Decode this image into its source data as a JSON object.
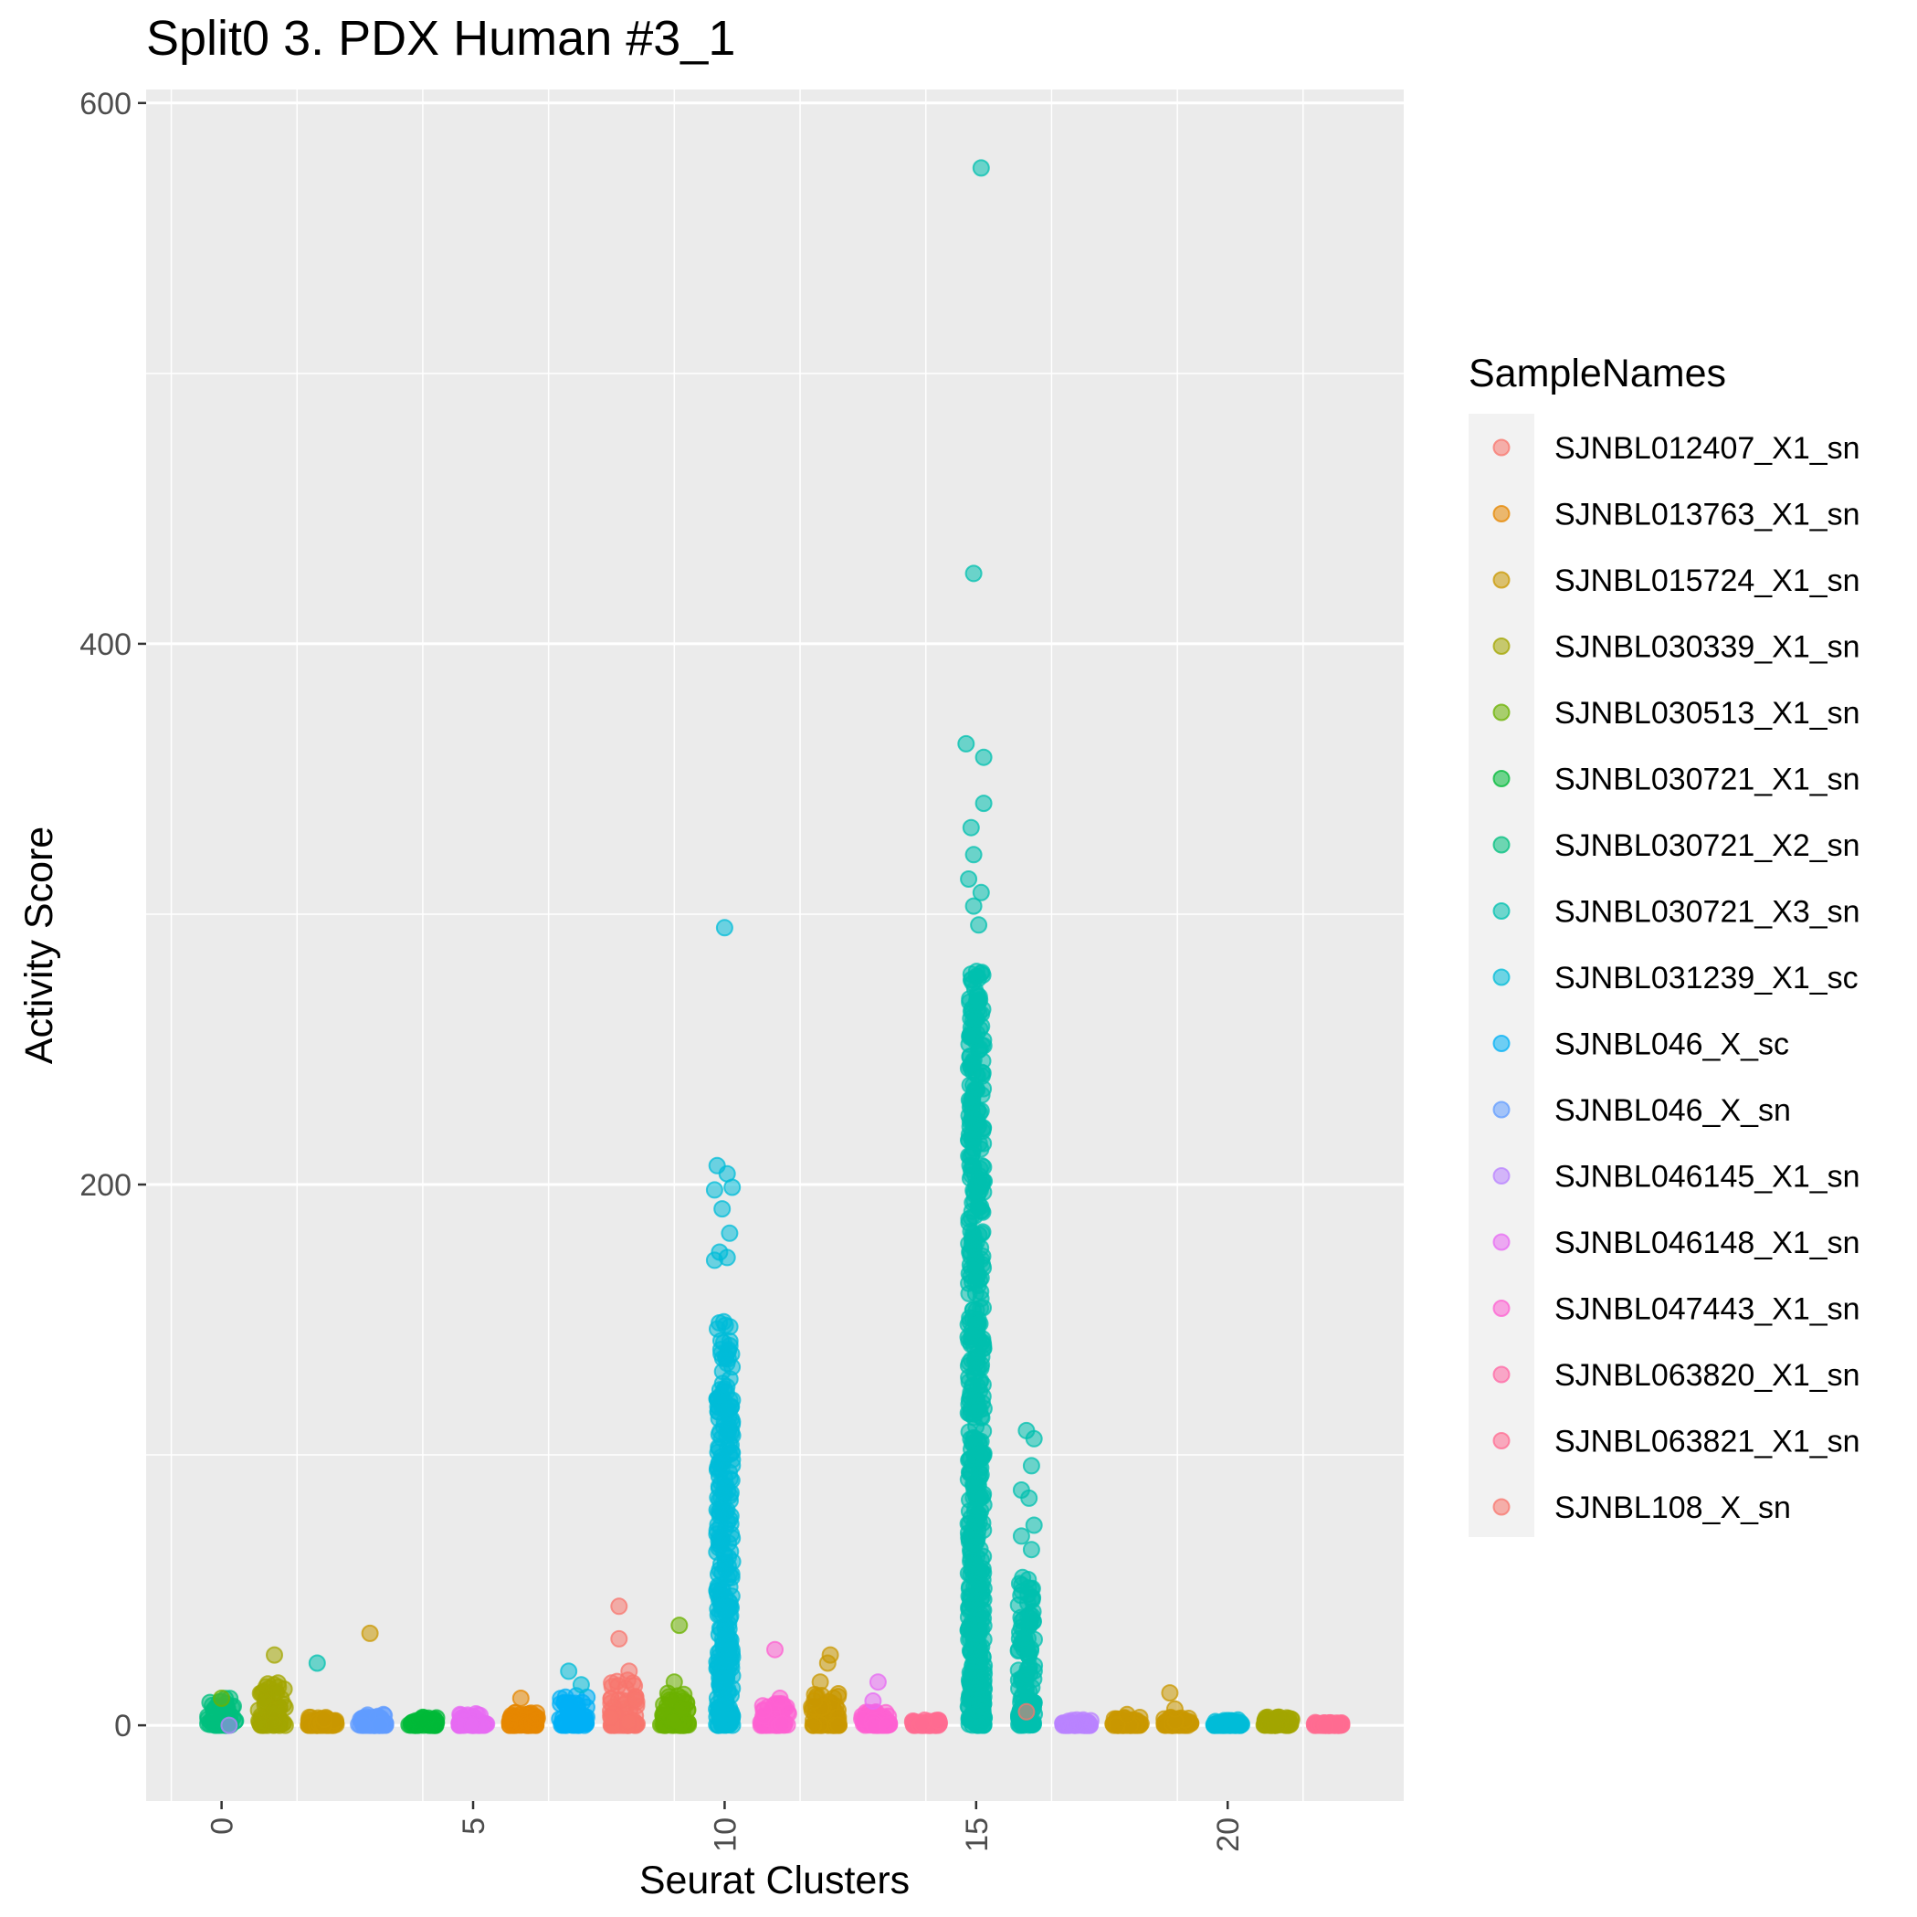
{
  "chart_data": {
    "type": "scatter",
    "title": "Split0 3. PDX Human #3_1",
    "xlabel": "Seurat Clusters",
    "ylabel": "Activity Score",
    "xlim": [
      -1.5,
      23.5
    ],
    "ylim": [
      -28,
      605
    ],
    "x_ticks": [
      0,
      5,
      10,
      15,
      20
    ],
    "y_ticks": [
      0,
      200,
      400,
      600
    ],
    "grid": true,
    "legend": {
      "title": "SampleNames",
      "position": "right",
      "entries": [
        {
          "name": "SJNBL012407_X1_sn",
          "color": "#F8766D"
        },
        {
          "name": "SJNBL013763_X1_sn",
          "color": "#E58700"
        },
        {
          "name": "SJNBL015724_X1_sn",
          "color": "#C99800"
        },
        {
          "name": "SJNBL030339_X1_sn",
          "color": "#A3A500"
        },
        {
          "name": "SJNBL030513_X1_sn",
          "color": "#6BB100"
        },
        {
          "name": "SJNBL030721_X1_sn",
          "color": "#00BA38"
        },
        {
          "name": "SJNBL030721_X2_sn",
          "color": "#00BF7D"
        },
        {
          "name": "SJNBL030721_X3_sn",
          "color": "#00C0AF"
        },
        {
          "name": "SJNBL031239_X1_sc",
          "color": "#00BCD8"
        },
        {
          "name": "SJNBL046_X_sc",
          "color": "#00B0F6"
        },
        {
          "name": "SJNBL046_X_sn",
          "color": "#619CFF"
        },
        {
          "name": "SJNBL046145_X1_sn",
          "color": "#B983FF"
        },
        {
          "name": "SJNBL046148_X1_sn",
          "color": "#E76BF3"
        },
        {
          "name": "SJNBL047443_X1_sn",
          "color": "#FD61D1"
        },
        {
          "name": "SJNBL063820_X1_sn",
          "color": "#FF67A4"
        },
        {
          "name": "SJNBL063821_X1_sn",
          "color": "#FF6C91"
        },
        {
          "name": "SJNBL108_X_sn",
          "color": "#F8766D"
        }
      ]
    },
    "clusters": [
      {
        "cluster": 0,
        "color": "#00BF7D",
        "max": 10
      },
      {
        "cluster": 1,
        "color": "#A3A500",
        "max": 16
      },
      {
        "cluster": 2,
        "color": "#C99800",
        "max": 3
      },
      {
        "cluster": 3,
        "color": "#619CFF",
        "max": 4
      },
      {
        "cluster": 4,
        "color": "#00BA38",
        "max": 3
      },
      {
        "cluster": 5,
        "color": "#E76BF3",
        "max": 5
      },
      {
        "cluster": 6,
        "color": "#E58700",
        "max": 5
      },
      {
        "cluster": 7,
        "color": "#00B0F6",
        "max": 12
      },
      {
        "cluster": 8,
        "color": "#F8766D",
        "max": 18
      },
      {
        "cluster": 9,
        "color": "#6BB100",
        "max": 12
      },
      {
        "cluster": 10,
        "color": "#00BCD8",
        "max": 150
      },
      {
        "cluster": 11,
        "color": "#FD61D1",
        "max": 8
      },
      {
        "cluster": 12,
        "color": "#C99800",
        "max": 12
      },
      {
        "cluster": 13,
        "color": "#FD61D1",
        "max": 5
      },
      {
        "cluster": 14,
        "color": "#FF6C91",
        "max": 2
      },
      {
        "cluster": 15,
        "color": "#00C0AF",
        "max": 280
      },
      {
        "cluster": 16,
        "color": "#00C0AF",
        "max": 55
      },
      {
        "cluster": 17,
        "color": "#B983FF",
        "max": 2
      },
      {
        "cluster": 18,
        "color": "#C99800",
        "max": 3
      },
      {
        "cluster": 19,
        "color": "#C99800",
        "max": 3
      },
      {
        "cluster": 20,
        "color": "#00BCD8",
        "max": 2
      },
      {
        "cluster": 21,
        "color": "#A3A500",
        "max": 3
      },
      {
        "cluster": 22,
        "color": "#FF6C91",
        "max": 1
      }
    ],
    "outliers": [
      {
        "x": 0.0,
        "y": 10,
        "color": "#6BB100"
      },
      {
        "x": 0.15,
        "y": 0,
        "color": "#B983FF"
      },
      {
        "x": 1.05,
        "y": 26,
        "color": "#A3A500"
      },
      {
        "x": 1.9,
        "y": 23,
        "color": "#00C0AF"
      },
      {
        "x": 2.95,
        "y": 34,
        "color": "#C99800"
      },
      {
        "x": 5.95,
        "y": 10,
        "color": "#E58700"
      },
      {
        "x": 6.9,
        "y": 20,
        "color": "#00BCD8"
      },
      {
        "x": 7.15,
        "y": 15,
        "color": "#00BCD8"
      },
      {
        "x": 7.9,
        "y": 44,
        "color": "#F8766D"
      },
      {
        "x": 7.9,
        "y": 32,
        "color": "#F8766D"
      },
      {
        "x": 8.1,
        "y": 20,
        "color": "#F8766D"
      },
      {
        "x": 9.1,
        "y": 37,
        "color": "#6BB100"
      },
      {
        "x": 9.0,
        "y": 16,
        "color": "#6BB100"
      },
      {
        "x": 10.0,
        "y": 295,
        "color": "#00BCD8"
      },
      {
        "x": 9.85,
        "y": 207,
        "color": "#00BCD8"
      },
      {
        "x": 10.05,
        "y": 204,
        "color": "#00BCD8"
      },
      {
        "x": 10.15,
        "y": 199,
        "color": "#00BCD8"
      },
      {
        "x": 9.8,
        "y": 198,
        "color": "#00BCD8"
      },
      {
        "x": 9.95,
        "y": 191,
        "color": "#00BCD8"
      },
      {
        "x": 10.1,
        "y": 182,
        "color": "#00BCD8"
      },
      {
        "x": 9.9,
        "y": 175,
        "color": "#00BCD8"
      },
      {
        "x": 9.8,
        "y": 172,
        "color": "#00BCD8"
      },
      {
        "x": 10.05,
        "y": 173,
        "color": "#00BCD8"
      },
      {
        "x": 11.0,
        "y": 28,
        "color": "#FD61D1"
      },
      {
        "x": 11.1,
        "y": 10,
        "color": "#FD61D1"
      },
      {
        "x": 12.1,
        "y": 26,
        "color": "#C99800"
      },
      {
        "x": 12.05,
        "y": 23,
        "color": "#C99800"
      },
      {
        "x": 11.9,
        "y": 16,
        "color": "#C99800"
      },
      {
        "x": 13.05,
        "y": 16,
        "color": "#E76BF3"
      },
      {
        "x": 12.95,
        "y": 9,
        "color": "#E76BF3"
      },
      {
        "x": 15.1,
        "y": 576,
        "color": "#00C0AF"
      },
      {
        "x": 14.95,
        "y": 426,
        "color": "#00C0AF"
      },
      {
        "x": 14.8,
        "y": 363,
        "color": "#00C0AF"
      },
      {
        "x": 15.15,
        "y": 358,
        "color": "#00C0AF"
      },
      {
        "x": 15.15,
        "y": 341,
        "color": "#00C0AF"
      },
      {
        "x": 14.9,
        "y": 332,
        "color": "#00C0AF"
      },
      {
        "x": 14.95,
        "y": 322,
        "color": "#00C0AF"
      },
      {
        "x": 14.85,
        "y": 313,
        "color": "#00C0AF"
      },
      {
        "x": 15.1,
        "y": 308,
        "color": "#00C0AF"
      },
      {
        "x": 14.95,
        "y": 303,
        "color": "#00C0AF"
      },
      {
        "x": 15.05,
        "y": 296,
        "color": "#00C0AF"
      },
      {
        "x": 16.0,
        "y": 109,
        "color": "#00C0AF"
      },
      {
        "x": 16.15,
        "y": 106,
        "color": "#00C0AF"
      },
      {
        "x": 16.1,
        "y": 96,
        "color": "#00C0AF"
      },
      {
        "x": 15.9,
        "y": 87,
        "color": "#00C0AF"
      },
      {
        "x": 16.05,
        "y": 84,
        "color": "#00C0AF"
      },
      {
        "x": 16.15,
        "y": 74,
        "color": "#00C0AF"
      },
      {
        "x": 15.9,
        "y": 70,
        "color": "#00C0AF"
      },
      {
        "x": 16.1,
        "y": 65,
        "color": "#00C0AF"
      },
      {
        "x": 16.0,
        "y": 5,
        "color": "#F8766D"
      },
      {
        "x": 18.85,
        "y": 12,
        "color": "#C99800"
      },
      {
        "x": 18.95,
        "y": 6,
        "color": "#C99800"
      },
      {
        "x": 18.0,
        "y": 4,
        "color": "#C99800"
      },
      {
        "x": 21.0,
        "y": 3,
        "color": "#A3A500"
      }
    ]
  }
}
